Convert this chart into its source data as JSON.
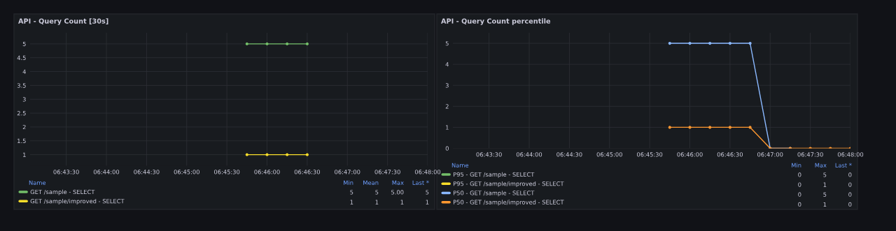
{
  "chart_data": [
    {
      "type": "line",
      "title": "API - Query Count [30s]",
      "x": [
        6.7625,
        6.76667,
        6.77083,
        6.775
      ],
      "series": [
        {
          "name": "GET /sample - SELECT",
          "color": "#73bf69",
          "values": [
            5,
            5,
            5,
            5
          ]
        },
        {
          "name": "GET /sample/improved - SELECT",
          "color": "#fade2a",
          "values": [
            1,
            1,
            1,
            1
          ]
        }
      ],
      "xlim": [
        6.7175,
        6.8
      ],
      "xticks": [
        {
          "value": 6.725,
          "label": "06:43:30"
        },
        {
          "value": 6.73333,
          "label": "06:44:00"
        },
        {
          "value": 6.74167,
          "label": "06:44:30"
        },
        {
          "value": 6.75,
          "label": "06:45:00"
        },
        {
          "value": 6.75833,
          "label": "06:45:30"
        },
        {
          "value": 6.76667,
          "label": "06:46:00"
        },
        {
          "value": 6.775,
          "label": "06:46:30"
        },
        {
          "value": 6.78333,
          "label": "06:47:00"
        },
        {
          "value": 6.79167,
          "label": "06:47:30"
        },
        {
          "value": 6.8,
          "label": "06:48:00"
        }
      ],
      "ylim": [
        0.6,
        5.4
      ],
      "yticks": [
        1,
        1.5,
        2,
        2.5,
        3,
        3.5,
        4,
        4.5,
        5
      ],
      "grid": true,
      "marker": "circle",
      "legend": "bottom",
      "annotations": [
        "Name",
        "Min",
        "Mean",
        "Max",
        "Last *",
        "5",
        "5",
        "5.00",
        "5",
        "1",
        "1",
        "1",
        "1"
      ]
    },
    {
      "type": "line",
      "title": "API - Query Count percentile",
      "x": [
        6.7625,
        6.76667,
        6.77083,
        6.775,
        6.77917,
        6.78333,
        6.7875,
        6.79167,
        6.79583,
        6.8
      ],
      "series": [
        {
          "name": "P95 - GET /sample - SELECT",
          "color": "#73bf69",
          "values": [
            null,
            null,
            null,
            null,
            null,
            null,
            null,
            null,
            null,
            null
          ]
        },
        {
          "name": "P95 - GET /sample/improved - SELECT",
          "color": "#fade2a",
          "values": [
            null,
            null,
            null,
            null,
            null,
            null,
            null,
            null,
            null,
            null
          ]
        },
        {
          "name": "P50 - GET /sample - SELECT",
          "color": "#8ab8ff",
          "values": [
            5,
            5,
            5,
            5,
            5,
            0,
            0,
            null,
            null,
            null
          ]
        },
        {
          "name": "P50 - GET /sample/improved - SELECT",
          "color": "#ff9830",
          "values": [
            1,
            1,
            1,
            1,
            1,
            0,
            0,
            0,
            0,
            0
          ]
        }
      ],
      "xlim": [
        6.7175,
        6.8
      ],
      "xticks": [
        {
          "value": 6.725,
          "label": "06:43:30"
        },
        {
          "value": 6.73333,
          "label": "06:44:00"
        },
        {
          "value": 6.74167,
          "label": "06:44:30"
        },
        {
          "value": 6.75,
          "label": "06:45:00"
        },
        {
          "value": 6.75833,
          "label": "06:45:30"
        },
        {
          "value": 6.76667,
          "label": "06:46:00"
        },
        {
          "value": 6.775,
          "label": "06:46:30"
        },
        {
          "value": 6.78333,
          "label": "06:47:00"
        },
        {
          "value": 6.79167,
          "label": "06:47:30"
        },
        {
          "value": 6.8,
          "label": "06:48:00"
        }
      ],
      "ylim": [
        0,
        5.5
      ],
      "yticks": [
        0,
        1,
        2,
        3,
        4,
        5
      ],
      "grid": true,
      "marker": "circle",
      "legend": "bottom",
      "annotations": [
        "Name",
        "Min",
        "Max",
        "Last *",
        "0",
        "5",
        "0",
        "0",
        "1",
        "0",
        "0",
        "5",
        "0",
        "0",
        "1",
        "0"
      ]
    }
  ]
}
